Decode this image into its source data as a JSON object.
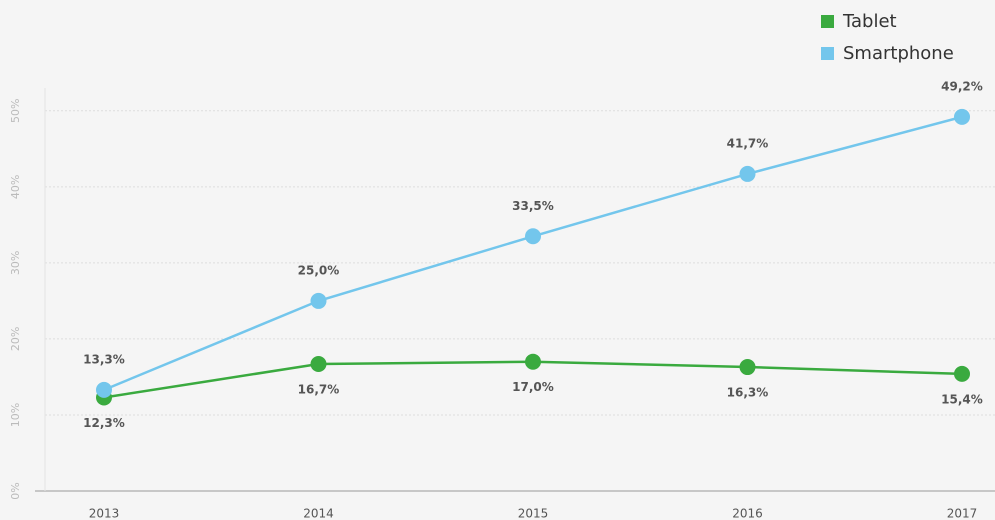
{
  "chart_data": {
    "type": "line",
    "categories": [
      "2013",
      "2014",
      "2015",
      "2016",
      "2017"
    ],
    "series": [
      {
        "name": "Tablet",
        "color": "#3aaa3f",
        "values": [
          12.3,
          16.7,
          17.0,
          16.3,
          15.4
        ],
        "value_labels": [
          "12,3%",
          "16,7%",
          "17,0%",
          "16,3%",
          "15,4%"
        ]
      },
      {
        "name": "Smartphone",
        "color": "#73c6ec",
        "values": [
          13.3,
          25.0,
          33.5,
          41.7,
          49.2
        ],
        "value_labels": [
          "13,3%",
          "25,0%",
          "33,5%",
          "41,7%",
          "49,2%"
        ]
      }
    ],
    "ylim": [
      0,
      53
    ],
    "yticks": [
      {
        "value": 0,
        "label": "0%"
      },
      {
        "value": 10,
        "label": "10%"
      },
      {
        "value": 20,
        "label": "20%"
      },
      {
        "value": 30,
        "label": "30%"
      },
      {
        "value": 40,
        "label": "40%"
      },
      {
        "value": 50,
        "label": "50%"
      }
    ],
    "grid": true,
    "legend": "top-right"
  }
}
